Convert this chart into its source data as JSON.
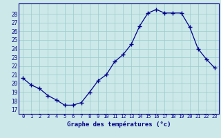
{
  "hours": [
    0,
    1,
    2,
    3,
    4,
    5,
    6,
    7,
    8,
    9,
    10,
    11,
    12,
    13,
    14,
    15,
    16,
    17,
    18,
    19,
    20,
    21,
    22,
    23
  ],
  "temps": [
    20.6,
    19.8,
    19.4,
    18.6,
    18.1,
    17.5,
    17.5,
    17.8,
    19.0,
    20.3,
    21.0,
    22.5,
    23.3,
    24.5,
    26.6,
    28.1,
    28.5,
    28.1,
    28.1,
    28.1,
    26.5,
    24.0,
    22.8,
    21.8
  ],
  "ylabel_vals": [
    17,
    18,
    19,
    20,
    21,
    22,
    23,
    24,
    25,
    26,
    27,
    28
  ],
  "ylim": [
    16.5,
    29.2
  ],
  "xlim": [
    -0.5,
    23.5
  ],
  "xlabel": "Graphe des températures (°c)",
  "line_color": "#00008b",
  "marker_color": "#00008b",
  "bg_color": "#cce8e8",
  "grid_color": "#99cccc",
  "axis_label_color": "#00008b",
  "tick_color": "#00008b",
  "spine_color": "#00008b"
}
